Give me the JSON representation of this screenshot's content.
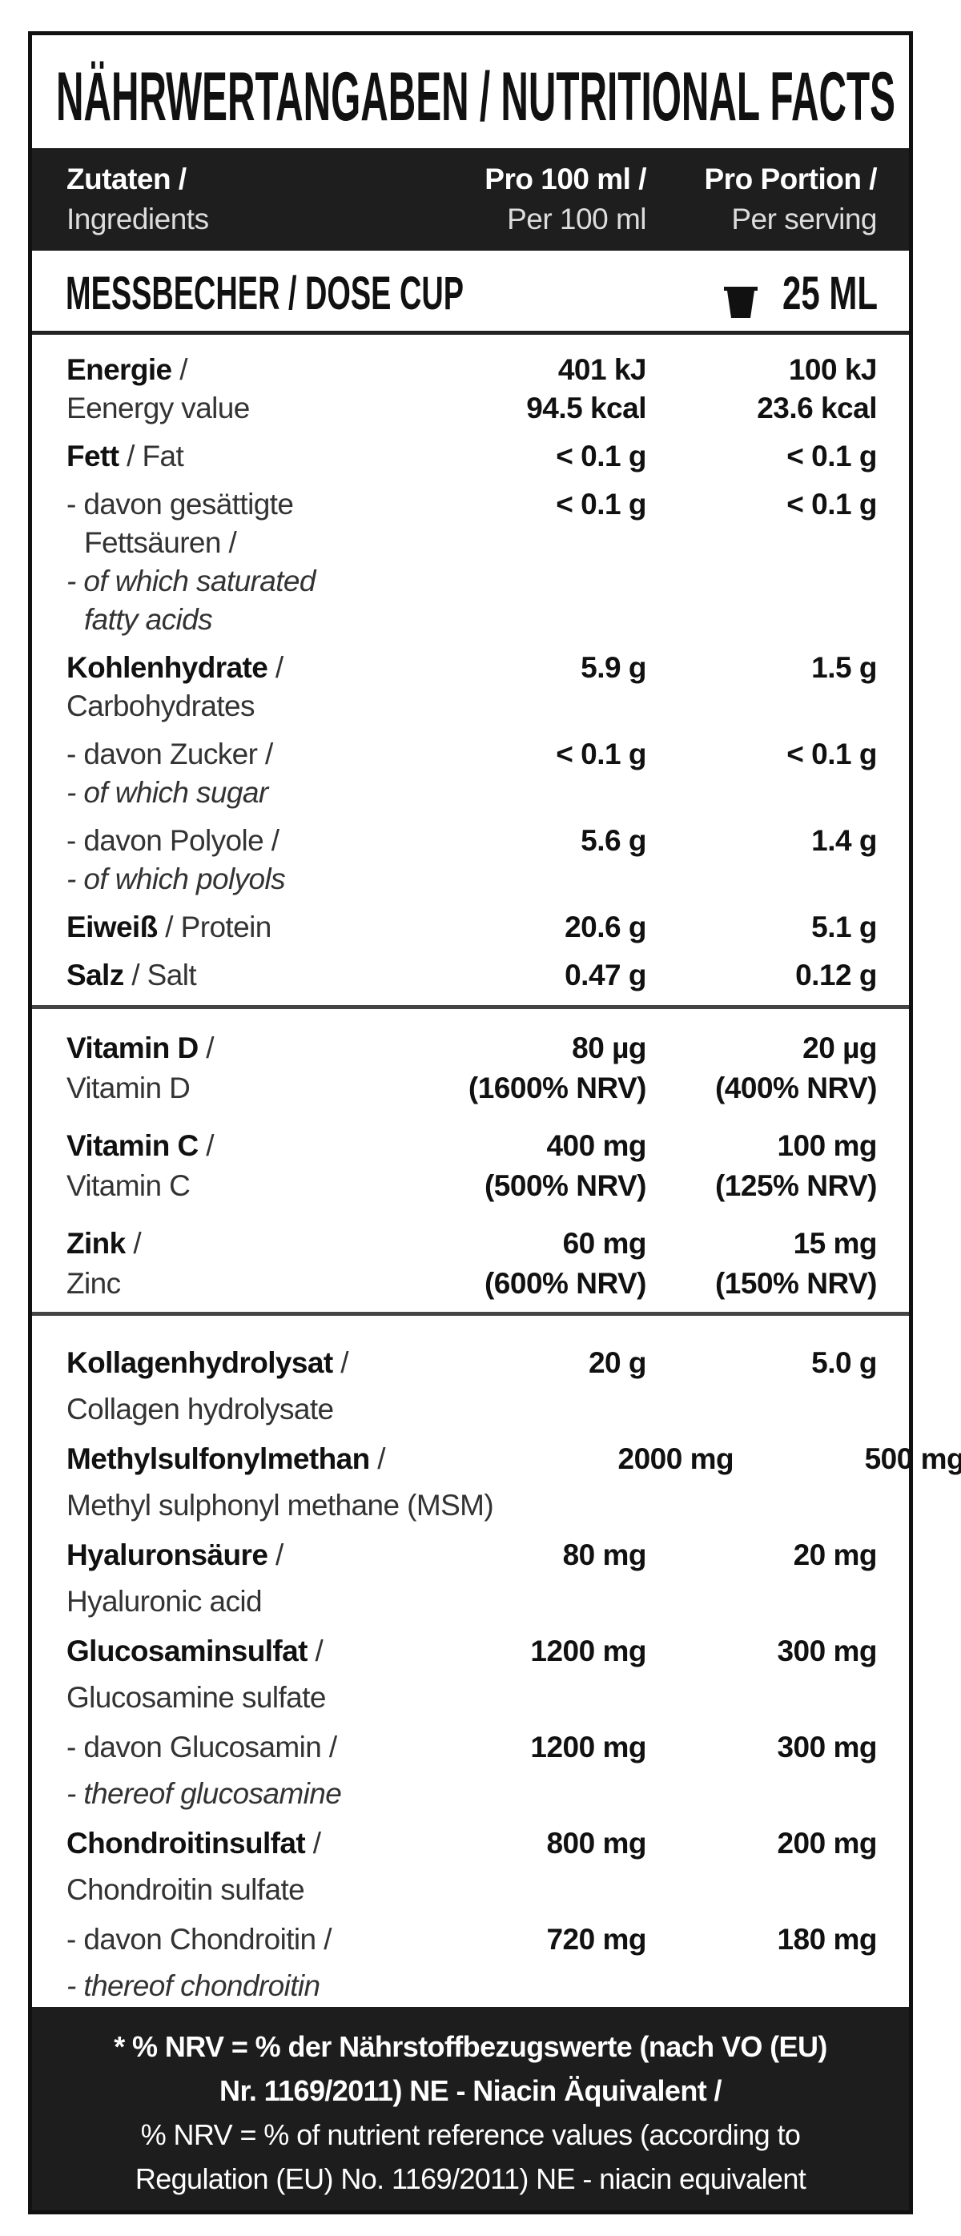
{
  "title": "NÄHRWERTANGABEN / NUTRITIONAL FACTS",
  "header": {
    "col1": [
      "Zutaten /",
      "Ingredients"
    ],
    "col2": [
      "Pro 100 ml /",
      "Per 100 ml"
    ],
    "col3": [
      "Pro Portion /",
      "Per serving"
    ]
  },
  "dose_cup": {
    "label": "MESSBECHER / DOSE CUP",
    "icon": "cup-icon",
    "value": "25 ML"
  },
  "sections": [
    {
      "id": "s1",
      "rows": [
        {
          "lines": [
            {
              "b": "Energie",
              "t": " /"
            },
            {
              "t": "Eenergy value"
            }
          ],
          "per100": [
            "401 kJ",
            "94.5 kcal"
          ],
          "serving": [
            "100 kJ",
            "23.6 kcal"
          ]
        },
        {
          "lines": [
            {
              "b": "Fett",
              "t": " / Fat"
            }
          ],
          "per100": [
            "< 0.1 g"
          ],
          "serving": [
            "< 0.1 g"
          ]
        },
        {
          "lines": [
            {
              "t": "- davon gesättigte"
            },
            {
              "t": "Fettsäuren /",
              "ind": true
            },
            {
              "t": "- of which saturated",
              "i": true
            },
            {
              "t": "fatty acids",
              "i": true,
              "ind": true
            }
          ],
          "per100": [
            "< 0.1 g"
          ],
          "serving": [
            "< 0.1 g"
          ]
        },
        {
          "lines": [
            {
              "b": "Kohlenhydrate",
              "t": " /"
            },
            {
              "t": "Carbohydrates"
            }
          ],
          "per100": [
            "5.9  g"
          ],
          "serving": [
            "1.5 g"
          ]
        },
        {
          "lines": [
            {
              "t": "- davon Zucker /"
            },
            {
              "t": "- of which sugar",
              "i": true
            }
          ],
          "per100": [
            "< 0.1 g"
          ],
          "serving": [
            "< 0.1 g"
          ]
        },
        {
          "lines": [
            {
              "t": "- davon Polyole /"
            },
            {
              "t": "- of which polyols",
              "i": true
            }
          ],
          "per100": [
            "5.6 g"
          ],
          "serving": [
            "1.4 g"
          ]
        },
        {
          "lines": [
            {
              "b": "Eiweiß",
              "t": " / Protein"
            }
          ],
          "per100": [
            "20.6 g"
          ],
          "serving": [
            "5.1 g"
          ]
        },
        {
          "lines": [
            {
              "b": "Salz",
              "t": " / Salt"
            }
          ],
          "per100": [
            "0.47 g"
          ],
          "serving": [
            "0.12 g"
          ]
        }
      ]
    },
    {
      "id": "s2",
      "rows": [
        {
          "lines": [
            {
              "b": "Vitamin D",
              "t": " /"
            },
            {
              "t": "Vitamin D"
            }
          ],
          "per100": [
            "80 µg",
            "(1600% NRV)"
          ],
          "serving": [
            "20 µg",
            "(400% NRV)"
          ]
        },
        {
          "lines": [
            {
              "b": "Vitamin C",
              "t": " /"
            },
            {
              "t": "Vitamin C"
            }
          ],
          "per100": [
            "400 mg",
            "(500% NRV)"
          ],
          "serving": [
            "100 mg",
            "(125% NRV)"
          ]
        },
        {
          "lines": [
            {
              "b": "Zink",
              "t": " /"
            },
            {
              "t": "Zinc"
            }
          ],
          "per100": [
            "60 mg",
            "(600% NRV)"
          ],
          "serving": [
            "15 mg",
            "(150% NRV)"
          ]
        }
      ]
    },
    {
      "id": "s3",
      "rows": [
        {
          "lines": [
            {
              "b": "Kollagenhydrolysat",
              "t": " /"
            },
            {
              "t": "Collagen hydrolysate"
            }
          ],
          "per100": [
            "20 g"
          ],
          "serving": [
            "5.0 g"
          ]
        },
        {
          "lines": [
            {
              "b": "Methylsulfonylmethan",
              "t": " /"
            },
            {
              "t": "Methyl sulphonyl methane (MSM)"
            }
          ],
          "per100": [
            "2000 mg"
          ],
          "serving": [
            "500 mg"
          ]
        },
        {
          "lines": [
            {
              "b": "Hyaluronsäure",
              "t": " /"
            },
            {
              "t": "Hyaluronic acid"
            }
          ],
          "per100": [
            "80 mg"
          ],
          "serving": [
            "20 mg"
          ]
        },
        {
          "lines": [
            {
              "b": "Glucosaminsulfat",
              "t": " /"
            },
            {
              "t": "Glucosamine sulfate"
            }
          ],
          "per100": [
            "1200 mg"
          ],
          "serving": [
            "300 mg"
          ]
        },
        {
          "lines": [
            {
              "t": "- davon Glucosamin /"
            },
            {
              "t": "- thereof glucosamine",
              "i": true
            }
          ],
          "per100": [
            "1200 mg"
          ],
          "serving": [
            "300 mg"
          ]
        },
        {
          "lines": [
            {
              "b": "Chondroitinsulfat",
              "t": " /"
            },
            {
              "t": "Chondroitin sulfate"
            }
          ],
          "per100": [
            "800 mg"
          ],
          "serving": [
            "200 mg"
          ]
        },
        {
          "lines": [
            {
              "t": "- davon Chondroitin /"
            },
            {
              "t": "- thereof chondroitin",
              "i": true
            }
          ],
          "per100": [
            "720 mg"
          ],
          "serving": [
            "180 mg"
          ]
        }
      ]
    }
  ],
  "footer": [
    "* % NRV = % der Nährstoffbezugswerte (nach VO (EU)",
    "Nr. 1169/2011) NE - Niacin Äquivalent /",
    "% NRV = % of nutrient reference values (according to",
    "Regulation (EU) No. 1169/2011)  NE - niacin equivalent"
  ]
}
